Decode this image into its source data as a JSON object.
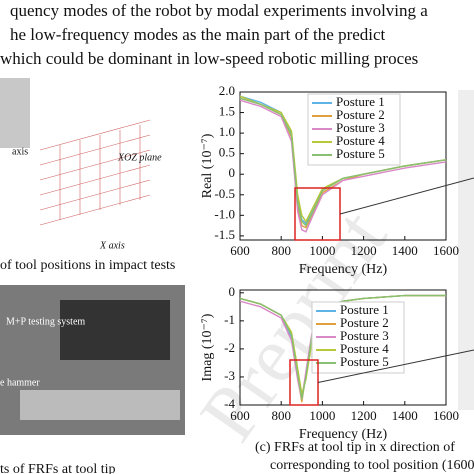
{
  "paragraph": [
    "quency modes of the robot by modal experiments involving a",
    "he low-frequency modes as the main part of the predict",
    "which could be dominant in low-speed robotic milling proces"
  ],
  "left_figure": {
    "y_axis_label": "axis",
    "plane_label": "XOZ plane",
    "x_axis_label": "X axis",
    "caption": "of tool positions in impact tests",
    "system_label": "M+P testing system",
    "hammer_label": "e hammer",
    "bottom_caption": "ts of FRFs at tool tip"
  },
  "caption": [
    "(c) FRFs at tool tip in x direction of",
    "corresponding to tool position (1600"
  ],
  "watermark": "Preprint",
  "chart_data": [
    {
      "type": "line",
      "xlabel": "Frequency (Hz)",
      "ylabel": "Real (10⁻⁷)",
      "x": [
        600,
        700,
        800,
        850,
        880,
        900,
        920,
        950,
        1000,
        1100,
        1200,
        1400,
        1600
      ],
      "series": [
        {
          "name": "Posture 1",
          "color": "#5fb3e6",
          "values": [
            1.9,
            1.75,
            1.5,
            1.0,
            -0.6,
            -1.1,
            -1.2,
            -0.9,
            -0.4,
            -0.1,
            0.0,
            0.2,
            0.35
          ]
        },
        {
          "name": "Posture 2",
          "color": "#e0a040",
          "values": [
            1.85,
            1.7,
            1.45,
            0.9,
            -0.8,
            -1.25,
            -1.3,
            -1.0,
            -0.45,
            -0.15,
            0.0,
            0.2,
            0.35
          ]
        },
        {
          "name": "Posture 3",
          "color": "#d988c8",
          "values": [
            1.8,
            1.65,
            1.4,
            0.8,
            -0.9,
            -1.35,
            -1.4,
            -1.05,
            -0.5,
            -0.15,
            -0.05,
            0.15,
            0.3
          ]
        },
        {
          "name": "Posture 4",
          "color": "#b8c838",
          "values": [
            1.9,
            1.7,
            1.5,
            1.05,
            -0.5,
            -1.0,
            -1.15,
            -0.85,
            -0.35,
            -0.1,
            0.0,
            0.2,
            0.35
          ]
        },
        {
          "name": "Posture 5",
          "color": "#88c070",
          "values": [
            1.85,
            1.7,
            1.45,
            0.95,
            -0.7,
            -1.15,
            -1.25,
            -0.95,
            -0.4,
            -0.1,
            0.0,
            0.2,
            0.35
          ]
        }
      ],
      "xlim": [
        600,
        1600
      ],
      "ylim": [
        -1.6,
        2.0
      ],
      "xticks": [
        600,
        800,
        1000,
        1200,
        1400,
        1600
      ],
      "yticks": [
        {
          "value": 2,
          "label": "2.0"
        },
        1.5,
        {
          "value": 1,
          "label": "1.0"
        },
        0.5,
        0,
        -0.5,
        {
          "value": -1,
          "label": "-1.0"
        },
        -1.5
      ]
    },
    {
      "type": "line",
      "xlabel": "Frequency (Hz)",
      "ylabel": "Imag (10⁻⁷)",
      "x": [
        600,
        700,
        800,
        850,
        880,
        900,
        920,
        950,
        1000,
        1100,
        1200,
        1400,
        1600
      ],
      "series": [
        {
          "name": "Posture 1",
          "color": "#5fb3e6",
          "values": [
            -0.2,
            -0.4,
            -0.8,
            -1.6,
            -2.8,
            -3.7,
            -3.0,
            -1.6,
            -0.6,
            -0.3,
            -0.2,
            -0.1,
            -0.1
          ]
        },
        {
          "name": "Posture 2",
          "color": "#e0a040",
          "values": [
            -0.2,
            -0.4,
            -0.8,
            -1.5,
            -3.0,
            -3.9,
            -2.9,
            -1.5,
            -0.5,
            -0.3,
            -0.2,
            -0.1,
            -0.1
          ]
        },
        {
          "name": "Posture 3",
          "color": "#d988c8",
          "values": [
            -0.3,
            -0.5,
            -0.9,
            -1.7,
            -3.1,
            -3.8,
            -2.8,
            -1.4,
            -0.5,
            -0.3,
            -0.2,
            -0.1,
            -0.1
          ]
        },
        {
          "name": "Posture 4",
          "color": "#b8c838",
          "values": [
            -0.2,
            -0.4,
            -0.8,
            -1.4,
            -2.7,
            -3.6,
            -3.1,
            -1.7,
            -0.6,
            -0.3,
            -0.2,
            -0.1,
            -0.1
          ]
        },
        {
          "name": "Posture 5",
          "color": "#88c070",
          "values": [
            -0.2,
            -0.4,
            -0.8,
            -1.5,
            -2.9,
            -3.8,
            -3.0,
            -1.5,
            -0.5,
            -0.3,
            -0.2,
            -0.1,
            -0.1
          ]
        }
      ],
      "xlim": [
        600,
        1600
      ],
      "ylim": [
        -4,
        0.1
      ],
      "xticks": [
        600,
        800,
        1000,
        1200,
        1400,
        1600
      ],
      "yticks": [
        0,
        -1,
        -2,
        -3,
        -4
      ]
    }
  ]
}
